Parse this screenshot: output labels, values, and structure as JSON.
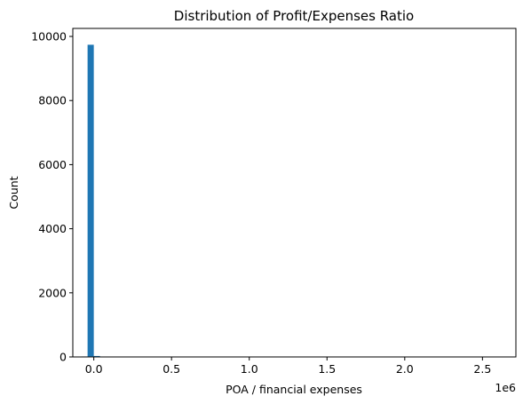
{
  "chart_data": {
    "type": "bar",
    "title": "Distribution of Profit/Expenses Ratio",
    "xlabel": "POA / financial expenses",
    "ylabel": "Count",
    "x_offset_label": "1e6",
    "xlim": [
      -0.135,
      2.715
    ],
    "ylim": [
      0,
      10250
    ],
    "x_ticks": [
      0.0,
      0.5,
      1.0,
      1.5,
      2.0,
      2.5
    ],
    "x_tick_labels": [
      "0.0",
      "0.5",
      "1.0",
      "1.5",
      "2.0",
      "2.5"
    ],
    "y_ticks": [
      0,
      2000,
      4000,
      6000,
      8000,
      10000
    ],
    "y_tick_labels": [
      "0",
      "2000",
      "4000",
      "6000",
      "8000",
      "10000"
    ],
    "bar_color": "#1f77b4",
    "grid": false,
    "bins": [
      {
        "x0": -0.08,
        "x1": -0.04,
        "count": 15
      },
      {
        "x0": -0.04,
        "x1": 0.0,
        "count": 9740
      },
      {
        "x0": 0.0,
        "x1": 0.04,
        "count": 30
      },
      {
        "x0": 0.04,
        "x1": 0.08,
        "count": 12
      },
      {
        "x0": 0.08,
        "x1": 0.12,
        "count": 5
      }
    ]
  }
}
